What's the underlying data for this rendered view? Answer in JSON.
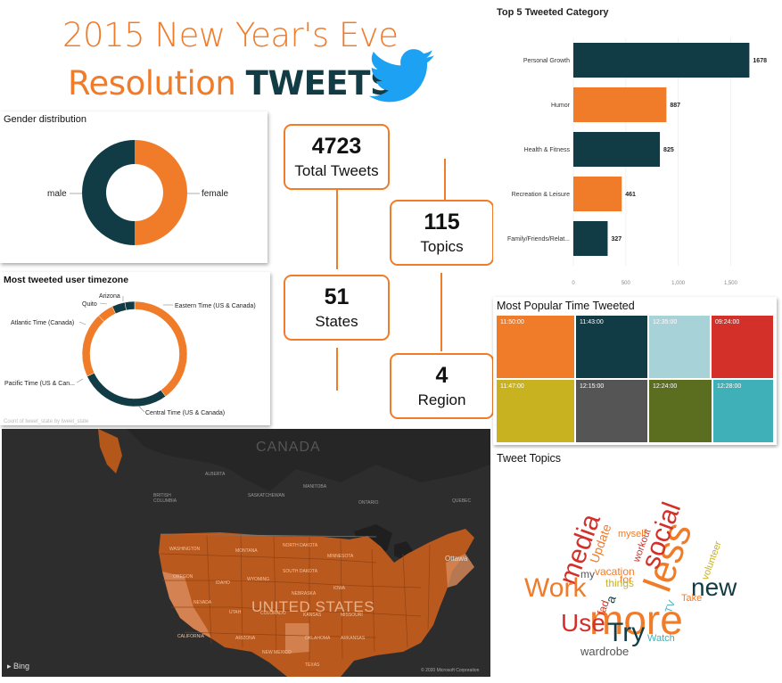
{
  "header": {
    "title_line1": "2015 New Year's Eve",
    "title_line2_prefix": "Resolution",
    "title_line2_emph": "TWEETS",
    "icon": "twitter-bird-icon"
  },
  "kpis": {
    "total_tweets": {
      "value": "4723",
      "label": "Total Tweets"
    },
    "topics": {
      "value": "115",
      "label": "Topics"
    },
    "states": {
      "value": "51",
      "label": "States"
    },
    "region": {
      "value": "4",
      "label": "Region"
    }
  },
  "gender_chart": {
    "title": "Gender distribution",
    "chart_data": {
      "type": "pie",
      "donut": true,
      "categories": [
        "male",
        "female"
      ],
      "values": [
        50,
        50
      ],
      "colors": [
        "#123c45",
        "#f07c2a"
      ]
    }
  },
  "timezone_chart": {
    "title": "Most tweeted user timezone",
    "footer": "Count of tweet_state by tweet_state",
    "chart_data": {
      "type": "pie",
      "donut": true,
      "categories": [
        "Eastern Time (US & Canada)",
        "Central Time (US & Canada)",
        "Pacific Time (US & Can...",
        "Atlantic Time (Canada)",
        "Quito",
        "Arizona"
      ],
      "values": [
        40,
        28,
        20,
        5,
        4,
        3
      ],
      "colors": [
        "#f07c2a",
        "#123c45",
        "#f07c2a",
        "#f07c2a",
        "#123c45",
        "#123c45"
      ]
    }
  },
  "top_category_chart": {
    "title": "Top 5 Tweeted Category",
    "chart_data": {
      "type": "bar",
      "orientation": "horizontal",
      "categories": [
        "Personal Growth",
        "Humor",
        "Health & Fitness",
        "Recreation & Leisure",
        "Family/Friends/Relat..."
      ],
      "values": [
        1678,
        887,
        825,
        461,
        327
      ],
      "colors": [
        "#123c45",
        "#f07c2a",
        "#123c45",
        "#f07c2a",
        "#123c45"
      ],
      "xlim": [
        0,
        1700
      ],
      "ticks": [
        0,
        500,
        1000,
        1500
      ],
      "tick_labels": [
        "0",
        "500",
        "1,000",
        "1,500"
      ]
    }
  },
  "time_chart": {
    "title": "Most Popular Time Tweeted",
    "chart_data": {
      "type": "heatmap",
      "tiles": [
        {
          "label": "11:50:00",
          "color": "#f07c2a"
        },
        {
          "label": "11:43:00",
          "color": "#123c45"
        },
        {
          "label": "12:35:00",
          "color": "#a6d2d8"
        },
        {
          "label": "09:24:00",
          "color": "#d4302a"
        },
        {
          "label": "11:47:00",
          "color": "#c9b21f"
        },
        {
          "label": "12:15:00",
          "color": "#555555"
        },
        {
          "label": "12:24:00",
          "color": "#5b6e1f"
        },
        {
          "label": "12:28:00",
          "color": "#3fb0b8"
        }
      ]
    }
  },
  "map": {
    "labels": {
      "country_canada": "CANADA",
      "country_us": "UNITED STATES",
      "city_ottawa": "Ottawa",
      "bing": "Bing",
      "copyright": "© 2020 Microsoft Corporation",
      "bc": "BRITISH COLUMBIA",
      "alberta": "ALBERTA",
      "saskatchewan": "SASKATCHEWAN",
      "manitoba": "MANITOBA",
      "ontario": "ONTARIO",
      "quebec": "QUEBEC",
      "washington": "WASHINGTON",
      "oregon": "OREGON",
      "california": "CALIFORNIA",
      "nevada": "NEVADA",
      "idaho": "IDAHO",
      "montana": "MONTANA",
      "wyoming": "WYOMING",
      "utah": "UTAH",
      "arizona": "ARIZONA",
      "new_mexico": "NEW MEXICO",
      "colorado": "COLORADO",
      "north_dakota": "NORTH DAKOTA",
      "south_dakota": "SOUTH DAKOTA",
      "nebraska": "NEBRASKA",
      "kansas": "KANSAS",
      "oklahoma": "OKLAHOMA",
      "texas": "TEXAS",
      "minnesota": "MINNESOTA",
      "iowa": "IOWA",
      "missouri": "MISSOURI",
      "arkansas": "ARKANSAS"
    }
  },
  "word_cloud": {
    "title": "Tweet Topics",
    "words": [
      {
        "text": "more",
        "color": "#f07c2a"
      },
      {
        "text": "less",
        "color": "#f07c2a"
      },
      {
        "text": "social",
        "color": "#d4302a"
      },
      {
        "text": "media",
        "color": "#d4302a"
      },
      {
        "text": "Work",
        "color": "#f07c2a"
      },
      {
        "text": "new",
        "color": "#123c45"
      },
      {
        "text": "Use",
        "color": "#d4302a"
      },
      {
        "text": "Try",
        "color": "#123c45"
      },
      {
        "text": "Update",
        "color": "#f07c2a"
      },
      {
        "text": "workout",
        "color": "#d4302a"
      },
      {
        "text": "volunteer",
        "color": "#c9b21f"
      },
      {
        "text": "myself",
        "color": "#f07c2a"
      },
      {
        "text": "for",
        "color": "#f07c2a"
      },
      {
        "text": "vacation",
        "color": "#f07c2a"
      },
      {
        "text": "things",
        "color": "#c9b21f"
      },
      {
        "text": "my",
        "color": "#555555"
      },
      {
        "text": "a",
        "color": "#123c45"
      },
      {
        "text": "Take",
        "color": "#f07c2a"
      },
      {
        "text": "fad",
        "color": "#d4302a"
      },
      {
        "text": "TV",
        "color": "#3fb0b8"
      },
      {
        "text": "Watch",
        "color": "#3fb0b8"
      },
      {
        "text": "wardrobe",
        "color": "#555555"
      }
    ]
  }
}
